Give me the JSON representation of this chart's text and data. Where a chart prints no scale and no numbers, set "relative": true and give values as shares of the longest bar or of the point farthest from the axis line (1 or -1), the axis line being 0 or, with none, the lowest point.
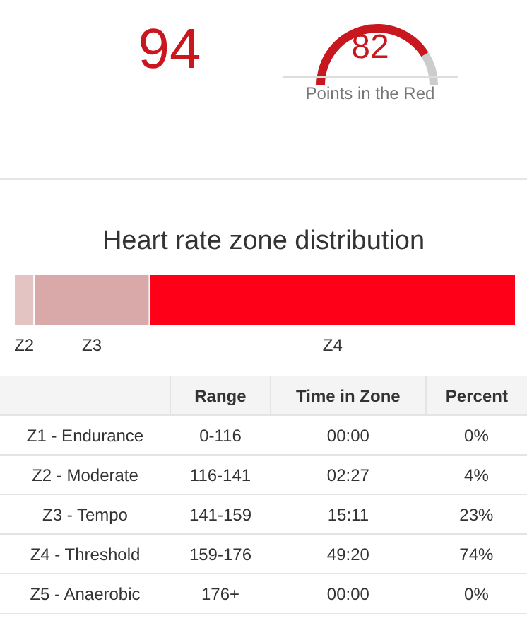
{
  "chart_data": [
    {
      "type": "other",
      "annotations": [
        "94"
      ]
    },
    {
      "type": "donut",
      "title": "Points in the Red",
      "annotations": [
        "82"
      ],
      "categories": [
        null,
        null
      ],
      "values": [
        82,
        18
      ],
      "colors": [
        "#c8171e",
        "#cccccc"
      ]
    },
    {
      "type": "bar",
      "orientation": "horizontal",
      "stacked": true,
      "title": "Heart rate zone distribution",
      "categories": [
        null
      ],
      "relative": true,
      "tick_labels": false,
      "series": [
        {
          "name": "Z2",
          "color": "#e4c3c3",
          "values": [
            0.04
          ]
        },
        {
          "name": "Z3",
          "color": "#d9a9a9",
          "values": [
            0.23
          ]
        },
        {
          "name": "Z4",
          "color": "#ff0019",
          "values": [
            0.73
          ]
        }
      ],
      "annotations": [
        "Range",
        "Time in Zone",
        "Percent",
        "Z1 - Endurance",
        "0-116",
        "00:00",
        "0%",
        "Z2 - Moderate",
        "116-141",
        "02:27",
        "4%",
        "Z3 - Tempo",
        "141-159",
        "15:11",
        "23%",
        "Z4 - Threshold",
        "159-176",
        "49:20",
        "74%",
        "Z5 - Anaerobic",
        "176+",
        "00:00",
        "0%"
      ]
    }
  ]
}
